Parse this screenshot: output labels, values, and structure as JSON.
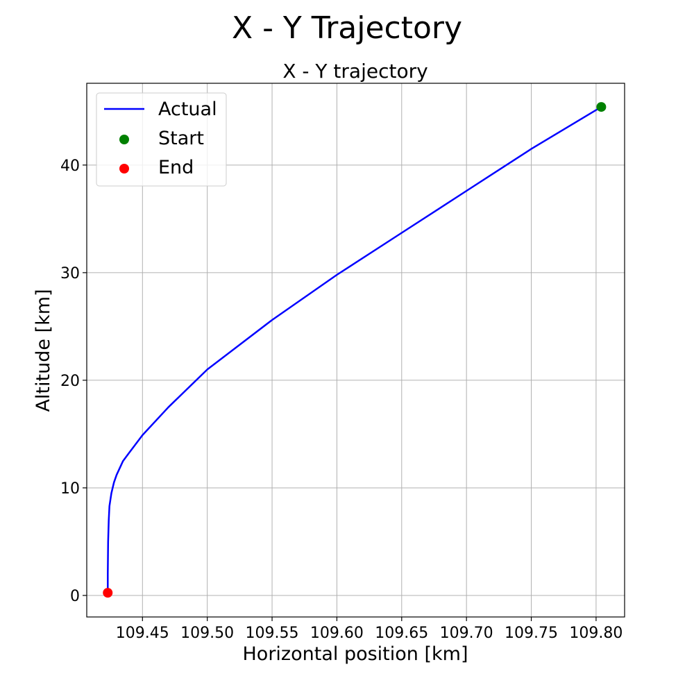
{
  "chart_data": {
    "type": "line",
    "suptitle": "X - Y Trajectory",
    "title": "X - Y trajectory",
    "xlabel": "Horizontal position [km]",
    "ylabel": "Altitude [km]",
    "xlim": [
      109.407,
      109.822
    ],
    "ylim": [
      -2,
      47.6
    ],
    "xticks": [
      109.45,
      109.5,
      109.55,
      109.6,
      109.65,
      109.7,
      109.75,
      109.8
    ],
    "xtick_labels": [
      "109.45",
      "109.50",
      "109.55",
      "109.60",
      "109.65",
      "109.70",
      "109.75",
      "109.80"
    ],
    "yticks": [
      0,
      10,
      20,
      30,
      40
    ],
    "ytick_labels": [
      "0",
      "10",
      "20",
      "30",
      "40"
    ],
    "grid": true,
    "legend_position": "top-left",
    "series": [
      {
        "name": "Actual",
        "kind": "line",
        "color": "#0000ff",
        "x": [
          109.804,
          109.75,
          109.7,
          109.65,
          109.6,
          109.55,
          109.5,
          109.47,
          109.45,
          109.44,
          109.435,
          109.43,
          109.428,
          109.426,
          109.4245,
          109.424,
          109.4235,
          109.4232,
          109.4232
        ],
        "y": [
          45.4,
          41.5,
          37.6,
          33.7,
          29.8,
          25.6,
          21.0,
          17.5,
          14.9,
          13.3,
          12.5,
          11.2,
          10.5,
          9.5,
          8.3,
          7.0,
          5.0,
          2.0,
          0.25
        ]
      },
      {
        "name": "Start",
        "kind": "point",
        "color": "#008000",
        "x": [
          109.804
        ],
        "y": [
          45.4
        ]
      },
      {
        "name": "End",
        "kind": "point",
        "color": "#ff0000",
        "x": [
          109.4232
        ],
        "y": [
          0.25
        ]
      }
    ]
  }
}
